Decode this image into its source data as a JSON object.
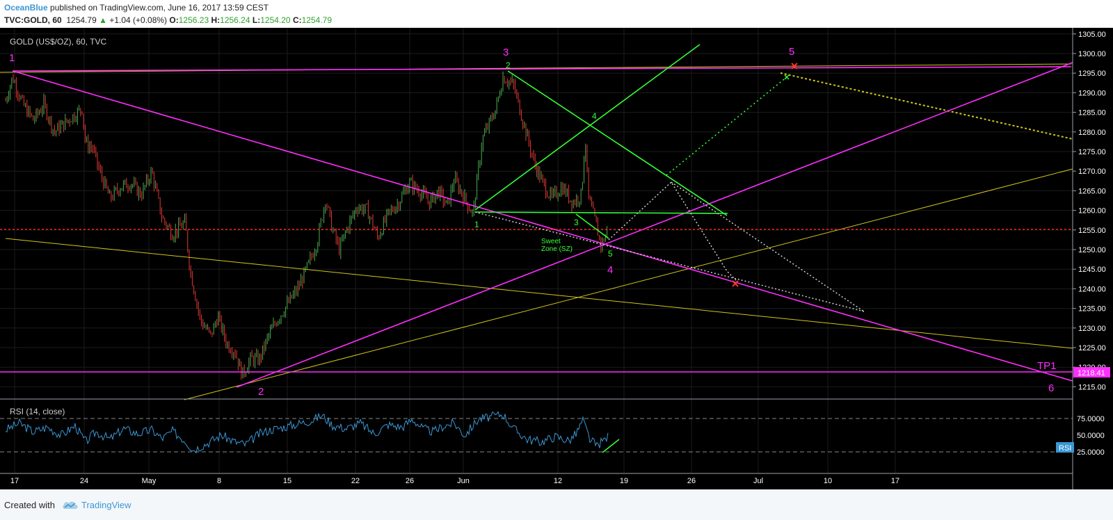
{
  "header": {
    "author": "OceanBlue",
    "published": "published on TradingView.com, June 16, 2017 13:59 CEST",
    "symbol": "TVC:GOLD, 60",
    "last": "1254.79",
    "change": "+1.04 (+0.08%)",
    "o_label": "O:",
    "o": "1256.23",
    "h_label": "H:",
    "h": "1256.24",
    "l_label": "L:",
    "l": "1254.20",
    "c_label": "C:",
    "c": "1254.79"
  },
  "footer": {
    "created_with": "Created with",
    "brand": "TradingView"
  },
  "colors": {
    "background": "#000000",
    "magenta": "#ff2eff",
    "green": "#33ff33",
    "yellow": "#d4c61a",
    "red_dotted": "#ff2222",
    "rsi_line": "#3a97d4",
    "candle_up": "#4caf50",
    "candle_down": "#e53935"
  },
  "chart_data": {
    "type": "candlestick",
    "title": "GOLD (US$/OZ), 60, TVC",
    "y_ticks": [
      "1305.00",
      "1300.00",
      "1295.00",
      "1290.00",
      "1285.00",
      "1280.00",
      "1275.00",
      "1270.00",
      "1265.00",
      "1260.00",
      "1255.00",
      "1250.00",
      "1245.00",
      "1240.00",
      "1235.00",
      "1230.00",
      "1225.00",
      "1220.00",
      "1215.00"
    ],
    "ylim": [
      1212,
      1307
    ],
    "x_ticks": [
      "17",
      "24",
      "May",
      "8",
      "15",
      "22",
      "26",
      "Jun",
      "12",
      "19",
      "26",
      "Jul",
      "10",
      "17"
    ],
    "price_tag": "1218.41",
    "horizontal_levels": [
      {
        "label": "TP1",
        "value": 1218.41,
        "color": "magenta"
      },
      {
        "value": 1255.0,
        "color": "red_dotted"
      }
    ],
    "price_path": [
      [
        0,
        1288
      ],
      [
        10,
        1294
      ],
      [
        25,
        1287
      ],
      [
        40,
        1283
      ],
      [
        55,
        1287
      ],
      [
        70,
        1280
      ],
      [
        90,
        1283
      ],
      [
        110,
        1286
      ],
      [
        115,
        1277
      ],
      [
        125,
        1276
      ],
      [
        135,
        1270
      ],
      [
        150,
        1263
      ],
      [
        165,
        1266
      ],
      [
        180,
        1267
      ],
      [
        195,
        1264
      ],
      [
        210,
        1270
      ],
      [
        225,
        1258
      ],
      [
        240,
        1254
      ],
      [
        258,
        1257
      ],
      [
        265,
        1245
      ],
      [
        280,
        1232
      ],
      [
        295,
        1228
      ],
      [
        305,
        1233
      ],
      [
        318,
        1226
      ],
      [
        330,
        1224
      ],
      [
        340,
        1218
      ],
      [
        352,
        1222
      ],
      [
        365,
        1222
      ],
      [
        378,
        1228
      ],
      [
        390,
        1232
      ],
      [
        405,
        1236
      ],
      [
        420,
        1240
      ],
      [
        435,
        1246
      ],
      [
        448,
        1252
      ],
      [
        460,
        1263
      ],
      [
        470,
        1255
      ],
      [
        480,
        1250
      ],
      [
        490,
        1255
      ],
      [
        505,
        1261
      ],
      [
        520,
        1260
      ],
      [
        535,
        1253
      ],
      [
        550,
        1259
      ],
      [
        565,
        1262
      ],
      [
        580,
        1267
      ],
      [
        595,
        1265
      ],
      [
        610,
        1262
      ],
      [
        622,
        1265
      ],
      [
        635,
        1261
      ],
      [
        645,
        1268
      ],
      [
        660,
        1263
      ],
      [
        672,
        1259
      ],
      [
        685,
        1278
      ],
      [
        695,
        1282
      ],
      [
        705,
        1286
      ],
      [
        715,
        1294
      ],
      [
        730,
        1292
      ],
      [
        745,
        1282
      ],
      [
        760,
        1272
      ],
      [
        772,
        1267
      ],
      [
        785,
        1263
      ],
      [
        800,
        1266
      ],
      [
        815,
        1262
      ],
      [
        828,
        1264
      ],
      [
        833,
        1279
      ],
      [
        838,
        1263
      ],
      [
        848,
        1257
      ],
      [
        856,
        1251
      ],
      [
        866,
        1255
      ]
    ],
    "rsi": {
      "label": "RSI (14, close)",
      "ticks": [
        "75.0000",
        "50.0000",
        "25.0000"
      ],
      "levels": [
        70,
        30
      ],
      "ylim": [
        10,
        100
      ],
      "badge": "RSI",
      "path": [
        [
          0,
          58
        ],
        [
          20,
          68
        ],
        [
          40,
          55
        ],
        [
          60,
          62
        ],
        [
          80,
          50
        ],
        [
          100,
          64
        ],
        [
          115,
          40
        ],
        [
          130,
          55
        ],
        [
          150,
          44
        ],
        [
          170,
          60
        ],
        [
          190,
          52
        ],
        [
          210,
          58
        ],
        [
          225,
          45
        ],
        [
          240,
          56
        ],
        [
          258,
          42
        ],
        [
          270,
          28
        ],
        [
          290,
          38
        ],
        [
          310,
          50
        ],
        [
          330,
          40
        ],
        [
          345,
          36
        ],
        [
          365,
          52
        ],
        [
          380,
          58
        ],
        [
          400,
          62
        ],
        [
          420,
          67
        ],
        [
          440,
          72
        ],
        [
          455,
          80
        ],
        [
          470,
          65
        ],
        [
          490,
          60
        ],
        [
          510,
          68
        ],
        [
          530,
          52
        ],
        [
          550,
          66
        ],
        [
          570,
          62
        ],
        [
          585,
          74
        ],
        [
          600,
          60
        ],
        [
          615,
          55
        ],
        [
          630,
          64
        ],
        [
          645,
          68
        ],
        [
          660,
          50
        ],
        [
          680,
          74
        ],
        [
          700,
          78
        ],
        [
          715,
          82
        ],
        [
          730,
          60
        ],
        [
          750,
          44
        ],
        [
          770,
          40
        ],
        [
          790,
          48
        ],
        [
          810,
          42
        ],
        [
          820,
          52
        ],
        [
          830,
          72
        ],
        [
          840,
          44
        ],
        [
          850,
          34
        ],
        [
          866,
          48
        ]
      ]
    },
    "annotations": [
      {
        "text": "1",
        "color": "magenta"
      },
      {
        "text": "2",
        "color": "magenta"
      },
      {
        "text": "3",
        "color": "magenta"
      },
      {
        "text": "4",
        "color": "magenta"
      },
      {
        "text": "5",
        "color": "magenta"
      },
      {
        "text": "6",
        "color": "magenta"
      },
      {
        "text": "TP1",
        "color": "magenta"
      },
      {
        "text": "1",
        "color": "green"
      },
      {
        "text": "2",
        "color": "green"
      },
      {
        "text": "3",
        "color": "green"
      },
      {
        "text": "4",
        "color": "green"
      },
      {
        "text": "5",
        "color": "green"
      },
      {
        "text": "Sweet",
        "color": "green"
      },
      {
        "text": "Zone (SZ)",
        "color": "green"
      }
    ]
  }
}
